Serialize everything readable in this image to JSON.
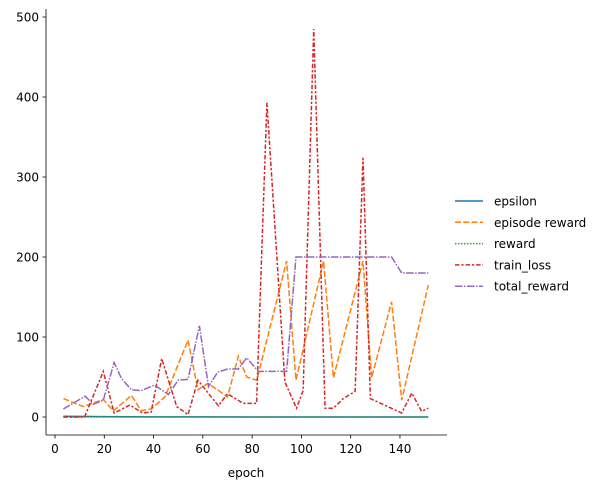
{
  "chart_data": {
    "type": "line",
    "title": "",
    "xlabel": "epoch",
    "ylabel": "",
    "xlim": [
      -3,
      155
    ],
    "ylim": [
      -22,
      512
    ],
    "xticks": [
      0,
      20,
      40,
      60,
      80,
      100,
      120,
      140
    ],
    "yticks": [
      0,
      100,
      200,
      300,
      400,
      500
    ],
    "grid": false,
    "legend": "right-outside",
    "series": [
      {
        "name": "epsilon",
        "color": "#1f77b4",
        "dash": "",
        "x": [
          3.4,
          20,
          40,
          60,
          80,
          100,
          120,
          151.5
        ],
        "y": [
          1,
          0.5,
          0.2,
          0.1,
          0.05,
          0.02,
          0.01,
          0.01
        ]
      },
      {
        "name": "episode reward",
        "color": "#ff7f0e",
        "dash": "6,2.25",
        "x": [
          3.4,
          11.5,
          19.6,
          23.7,
          31,
          35,
          39,
          44.6,
          54,
          58,
          62,
          66,
          70,
          74.4,
          77.8,
          81.9,
          94,
          97.8,
          109,
          113,
          125,
          128.5,
          136.6,
          140.7,
          151.5
        ],
        "y": [
          23,
          13,
          22,
          7.5,
          27,
          8,
          10,
          25,
          96,
          34,
          42,
          34,
          25,
          76,
          50,
          46,
          195,
          46,
          195,
          49,
          195,
          49,
          144,
          21,
          165
        ]
      },
      {
        "name": "reward",
        "color": "#2ca02c",
        "dash": "1.5,1.5",
        "x": [
          3.4,
          151.5
        ],
        "y": [
          0,
          0
        ]
      },
      {
        "name": "train_loss",
        "color": "#d62728",
        "dash": "4.5,1.9,2.25,1.9",
        "x": [
          3.4,
          12,
          19.6,
          24,
          30.4,
          35.5,
          39,
          43.3,
          49.4,
          54,
          58,
          66.3,
          70,
          76.4,
          81.8,
          86,
          93.3,
          98,
          100.7,
          105,
          109.6,
          113,
          117,
          121.8,
          125,
          128,
          140.7,
          144.8,
          148.8,
          151.5
        ],
        "y": [
          0,
          0,
          57,
          5,
          15,
          5,
          6,
          73,
          13,
          3,
          46,
          14,
          29,
          17,
          17,
          393,
          44,
          11,
          33,
          485,
          11,
          11,
          23,
          32,
          324,
          23,
          5,
          30,
          7,
          11
        ]
      },
      {
        "name": "total_reward",
        "color": "#9467bd",
        "dash": "7.5,1.5,1.5,1.5",
        "x": [
          3.4,
          12.2,
          15.6,
          19.6,
          24,
          27,
          31,
          35,
          40.4,
          46,
          50,
          54,
          58.6,
          62.3,
          66,
          70,
          74.4,
          77.8,
          82.5,
          94,
          97.8,
          136.6,
          140.7,
          151.5
        ],
        "y": [
          10,
          26,
          16,
          21,
          68,
          48,
          34,
          33,
          40,
          28,
          46,
          47,
          114,
          38,
          56,
          60,
          60,
          74,
          57,
          57,
          200,
          200,
          180,
          180
        ]
      }
    ]
  }
}
